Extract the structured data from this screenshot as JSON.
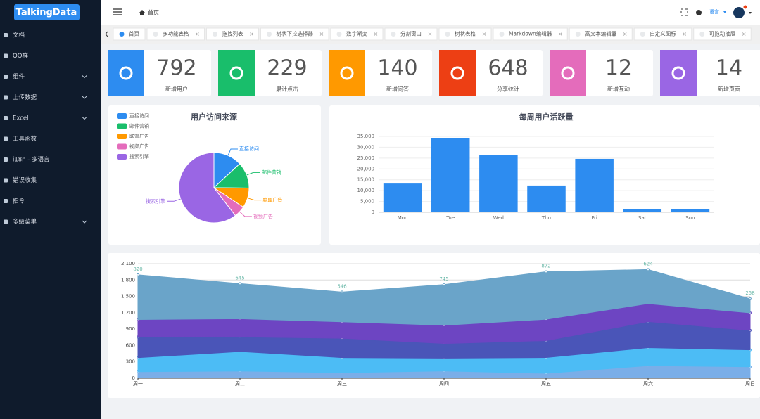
{
  "sidebar": {
    "logo": "TalkingData",
    "menu": [
      {
        "label": "文档"
      },
      {
        "label": "QQ群"
      },
      {
        "label": "组件",
        "submenu": true
      },
      {
        "label": "上传数据",
        "submenu": true
      },
      {
        "label": "Excel",
        "submenu": true
      },
      {
        "label": "工具函数"
      },
      {
        "label": "i18n - 多语言"
      },
      {
        "label": "错误收集"
      },
      {
        "label": "指令"
      },
      {
        "label": "多级菜单",
        "submenu": true
      }
    ]
  },
  "header": {
    "breadcrumb": "首页",
    "language": "语言"
  },
  "tabs": [
    "首页",
    "多功能表格",
    "拖拽列表",
    "树状下拉选择器",
    "数字渐变",
    "分割窗口",
    "树状表格",
    "Markdown编辑器",
    "富文本编辑器",
    "自定义图标",
    "可拖动抽屉"
  ],
  "cards": [
    {
      "value": 792,
      "label": "新增用户",
      "color": "#2d8cf0"
    },
    {
      "value": 229,
      "label": "累计点击",
      "color": "#19be6b"
    },
    {
      "value": 140,
      "label": "新增问答",
      "color": "#ff9900"
    },
    {
      "value": 648,
      "label": "分享统计",
      "color": "#ed3f14"
    },
    {
      "value": 12,
      "label": "新增互动",
      "color": "#e46cbb"
    },
    {
      "value": 14,
      "label": "新增页面",
      "color": "#9a66e4"
    }
  ],
  "chart_data": [
    {
      "type": "pie",
      "title": "用户访问来源",
      "legend": "top-left",
      "categories": [
        "直接访问",
        "邮件营销",
        "联盟广告",
        "视频广告",
        "搜索引擎"
      ],
      "values": [
        335,
        310,
        234,
        135,
        1548
      ],
      "colors": [
        "#2d8cf0",
        "#19be6b",
        "#ff9900",
        "#e46cbb",
        "#9a66e4"
      ]
    },
    {
      "type": "bar",
      "title": "每周用户活跃量",
      "categories": [
        "Mon",
        "Tue",
        "Wed",
        "Thu",
        "Fri",
        "Sat",
        "Sun"
      ],
      "values": [
        13253,
        34235,
        26321,
        12340,
        24643,
        1322,
        1324
      ],
      "color": "#2d8cf0",
      "ylim": [
        0,
        35000
      ],
      "yticks": [
        0,
        {
          "value": 5000,
          "label": "5,000"
        },
        {
          "value": 10000,
          "label": "10,000"
        },
        {
          "value": 15000,
          "label": "15,000"
        },
        {
          "value": 20000,
          "label": "20,000"
        },
        {
          "value": 25000,
          "label": "25,000"
        },
        {
          "value": 30000,
          "label": "30,000"
        },
        {
          "value": 35000,
          "label": "35,000"
        }
      ],
      "grid": true
    },
    {
      "type": "area",
      "stacked": true,
      "categories": [
        "周一",
        "周二",
        "周三",
        "周四",
        "周五",
        "周六",
        "周日"
      ],
      "series": [
        {
          "color": "#7aaee8",
          "values": [
            120,
            132,
            101,
            134,
            90,
            230,
            210
          ]
        },
        {
          "color": "#4cbcf5",
          "values": [
            257,
            358,
            278,
            234,
            290,
            330,
            310
          ]
        },
        {
          "color": "#4a55b8",
          "values": [
            379,
            268,
            354,
            269,
            310,
            478,
            358
          ]
        },
        {
          "color": "#6d45c2",
          "values": [
            320,
            332,
            301,
            334,
            390,
            330,
            320
          ]
        },
        {
          "color": "#6aa4c9",
          "values": [
            820,
            645,
            546,
            745,
            872,
            624,
            258
          ],
          "labels": true
        }
      ],
      "ylim": [
        0,
        2100
      ],
      "yticks": [
        0,
        300,
        600,
        900,
        {
          "value": 1200,
          "label": "1,200"
        },
        {
          "value": 1500,
          "label": "1,500"
        },
        {
          "value": 1800,
          "label": "1,800"
        },
        {
          "value": 2100,
          "label": "2,100"
        }
      ],
      "grid": true
    }
  ]
}
